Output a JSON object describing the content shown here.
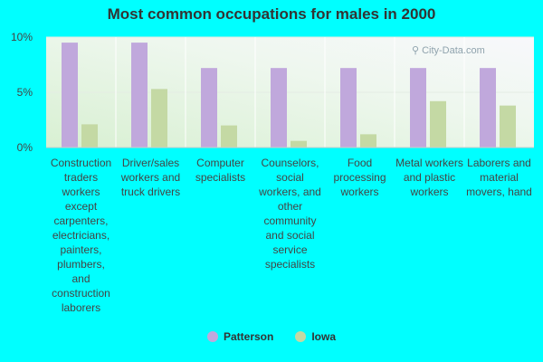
{
  "chart_data": {
    "type": "bar",
    "title": "Most common occupations for males in 2000",
    "categories": [
      "Construction traders workers except carpenters, electricians, painters, plumbers, and construction laborers",
      "Driver/sales workers and truck drivers",
      "Computer specialists",
      "Counselors, social workers, and other community and social service specialists",
      "Food processing workers",
      "Metal workers and plastic workers",
      "Laborers and material movers, hand"
    ],
    "series": [
      {
        "name": "Patterson",
        "color": "#c0a8dc",
        "values": [
          9.5,
          9.5,
          7.2,
          7.2,
          7.2,
          7.2,
          7.2
        ]
      },
      {
        "name": "Iowa",
        "color": "#c4d9a4",
        "values": [
          2.1,
          5.3,
          2.0,
          0.6,
          1.2,
          4.2,
          3.8
        ]
      }
    ],
    "yticks": [
      "0%",
      "5%",
      "10%"
    ],
    "ylim": [
      0,
      10
    ],
    "grid": true,
    "legend_position": "bottom-center"
  },
  "watermark": "City-Data.com"
}
